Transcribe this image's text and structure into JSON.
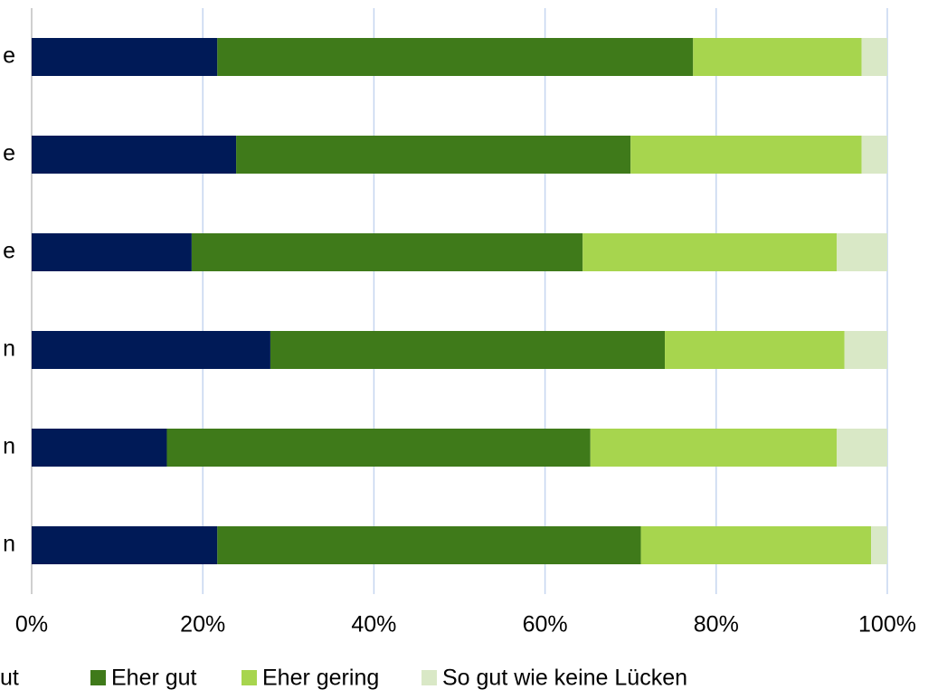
{
  "chart_data": {
    "type": "stacked_bar_horizontal",
    "categories": [
      "e",
      "e",
      "e",
      "n",
      "n",
      "n"
    ],
    "series": [
      {
        "name": "ut",
        "color": "#001a57",
        "values": [
          21.7,
          23.9,
          18.7,
          27.9,
          15.8,
          21.7
        ]
      },
      {
        "name": "Eher gut",
        "color": "#3f7a1a",
        "values": [
          55.6,
          46.1,
          45.7,
          46.1,
          49.5,
          49.5
        ]
      },
      {
        "name": "Eher gering",
        "color": "#a7d54e",
        "values": [
          19.7,
          27.0,
          29.7,
          21.0,
          28.8,
          26.9
        ]
      },
      {
        "name": "So gut wie keine Lücken",
        "color": "#d9e8c6",
        "values": [
          3.0,
          3.0,
          5.9,
          5.0,
          5.9,
          1.9
        ]
      }
    ],
    "xlim": [
      0,
      100
    ],
    "xticks": [
      {
        "value": 0,
        "label": "0%"
      },
      {
        "value": 20,
        "label": "20%"
      },
      {
        "value": 40,
        "label": "40%"
      },
      {
        "value": 60,
        "label": "60%"
      },
      {
        "value": 80,
        "label": "80%"
      },
      {
        "value": 100,
        "label": "100%"
      }
    ],
    "grid": true,
    "legend": "bottom"
  }
}
